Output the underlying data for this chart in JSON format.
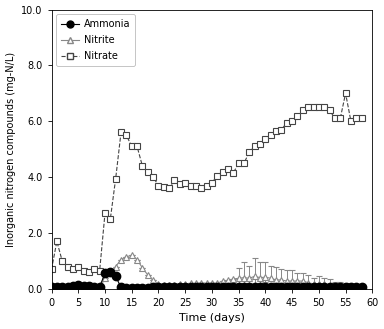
{
  "ammonia": {
    "x": [
      0,
      1,
      2,
      3,
      4,
      5,
      6,
      7,
      8,
      9,
      10,
      11,
      12,
      13,
      14,
      15,
      16,
      17,
      18,
      19,
      20,
      21,
      22,
      23,
      24,
      25,
      26,
      27,
      28,
      29,
      30,
      31,
      32,
      33,
      34,
      35,
      36,
      37,
      38,
      39,
      40,
      41,
      42,
      43,
      44,
      45,
      46,
      47,
      48,
      49,
      50,
      51,
      52,
      53,
      54,
      55,
      56,
      57,
      58
    ],
    "y": [
      0.05,
      0.05,
      0.08,
      0.08,
      0.1,
      0.15,
      0.12,
      0.1,
      0.08,
      0.08,
      0.55,
      0.6,
      0.45,
      0.05,
      0.02,
      0.02,
      0.02,
      0.02,
      0.02,
      0.05,
      0.08,
      0.08,
      0.08,
      0.08,
      0.08,
      0.05,
      0.05,
      0.05,
      0.05,
      0.05,
      0.05,
      0.05,
      0.05,
      0.05,
      0.05,
      0.05,
      0.05,
      0.05,
      0.05,
      0.05,
      0.05,
      0.05,
      0.05,
      0.05,
      0.05,
      0.05,
      0.05,
      0.05,
      0.05,
      0.05,
      0.05,
      0.05,
      0.05,
      0.05,
      0.05,
      0.05,
      0.05,
      0.05,
      0.05
    ],
    "color": "#000000",
    "marker": "o",
    "linestyle": "-",
    "label": "Ammonia",
    "markersize": 6
  },
  "nitrite": {
    "x": [
      0,
      1,
      2,
      3,
      4,
      5,
      6,
      7,
      8,
      9,
      10,
      11,
      12,
      13,
      14,
      15,
      16,
      17,
      18,
      19,
      20,
      21,
      22,
      23,
      24,
      25,
      26,
      27,
      28,
      29,
      30,
      31,
      32,
      33,
      34,
      35,
      36,
      37,
      38,
      39,
      40,
      41,
      42,
      43,
      44,
      45,
      46,
      47,
      48,
      49,
      50,
      51,
      52,
      53,
      54,
      55,
      56,
      57,
      58
    ],
    "y": [
      0.0,
      -0.05,
      -0.05,
      -0.05,
      0.0,
      0.15,
      0.05,
      0.0,
      0.0,
      0.0,
      0.4,
      0.55,
      0.8,
      1.05,
      1.15,
      1.2,
      1.05,
      0.75,
      0.5,
      0.3,
      0.18,
      0.15,
      0.15,
      0.15,
      0.18,
      0.18,
      0.2,
      0.2,
      0.22,
      0.2,
      0.22,
      0.2,
      0.28,
      0.3,
      0.35,
      0.38,
      0.4,
      0.38,
      0.45,
      0.4,
      0.42,
      0.38,
      0.32,
      0.32,
      0.28,
      0.28,
      0.28,
      0.28,
      0.22,
      0.18,
      0.18,
      0.18,
      0.12,
      0.08,
      0.08,
      0.08,
      0.05,
      0.05,
      0.05
    ],
    "yerr_upper": [
      0.0,
      0.0,
      0.0,
      0.0,
      0.0,
      0.0,
      0.0,
      0.0,
      0.0,
      0.0,
      0.0,
      0.0,
      0.0,
      0.0,
      0.0,
      0.0,
      0.0,
      0.0,
      0.0,
      0.0,
      0.0,
      0.0,
      0.0,
      0.0,
      0.0,
      0.0,
      0.0,
      0.0,
      0.0,
      0.0,
      0.0,
      0.0,
      0.0,
      0.0,
      0.0,
      0.35,
      0.55,
      0.45,
      0.65,
      0.55,
      0.55,
      0.45,
      0.45,
      0.4,
      0.4,
      0.38,
      0.3,
      0.28,
      0.28,
      0.22,
      0.28,
      0.22,
      0.22,
      0.18,
      0.18,
      0.12,
      0.12,
      0.08,
      0.08
    ],
    "yerr_lower": [
      0.0,
      0.0,
      0.0,
      0.0,
      0.0,
      0.0,
      0.0,
      0.0,
      0.0,
      0.0,
      0.0,
      0.0,
      0.0,
      0.0,
      0.0,
      0.0,
      0.0,
      0.0,
      0.0,
      0.0,
      0.0,
      0.0,
      0.0,
      0.0,
      0.0,
      0.0,
      0.0,
      0.0,
      0.0,
      0.0,
      0.0,
      0.0,
      0.0,
      0.0,
      0.0,
      0.18,
      0.28,
      0.18,
      0.28,
      0.18,
      0.18,
      0.08,
      0.12,
      0.08,
      0.08,
      0.08,
      0.05,
      0.05,
      0.05,
      0.05,
      0.05,
      0.05,
      0.05,
      0.05,
      0.05,
      0.05,
      0.0,
      0.0,
      0.0
    ],
    "color": "#888888",
    "marker": "^",
    "linestyle": "-",
    "label": "Nitrite",
    "markersize": 5
  },
  "nitrate": {
    "x": [
      0,
      1,
      2,
      3,
      4,
      5,
      6,
      7,
      8,
      9,
      10,
      11,
      12,
      13,
      14,
      15,
      16,
      17,
      18,
      19,
      20,
      21,
      22,
      23,
      24,
      25,
      26,
      27,
      28,
      29,
      30,
      31,
      32,
      33,
      34,
      35,
      36,
      37,
      38,
      39,
      40,
      41,
      42,
      43,
      44,
      45,
      46,
      47,
      48,
      49,
      50,
      51,
      52,
      53,
      54,
      55,
      56,
      57,
      58
    ],
    "y": [
      0.7,
      1.7,
      1.0,
      0.8,
      0.7,
      0.8,
      0.65,
      0.6,
      0.7,
      0.65,
      2.7,
      2.5,
      3.95,
      5.6,
      5.5,
      5.1,
      5.1,
      4.4,
      4.2,
      4.0,
      3.7,
      3.65,
      3.6,
      3.9,
      3.75,
      3.8,
      3.7,
      3.7,
      3.6,
      3.7,
      3.8,
      4.05,
      4.2,
      4.3,
      4.15,
      4.5,
      4.5,
      4.9,
      5.1,
      5.2,
      5.35,
      5.5,
      5.65,
      5.7,
      5.95,
      6.0,
      6.2,
      6.4,
      6.5,
      6.5,
      6.5,
      6.5,
      6.4,
      6.1,
      6.1,
      7.0,
      6.0,
      6.1,
      6.1
    ],
    "color": "#444444",
    "marker": "s",
    "linestyle": "--",
    "label": "Nitrate",
    "markersize": 5
  },
  "xlim": [
    0,
    60
  ],
  "ylim": [
    0.0,
    10.0
  ],
  "xticks": [
    0,
    5,
    10,
    15,
    20,
    25,
    30,
    35,
    40,
    45,
    50,
    55,
    60
  ],
  "ytick_labels": [
    "0.0",
    "2.0",
    "4.0",
    "6.0",
    "8.0",
    "10.0"
  ],
  "yticks": [
    0.0,
    2.0,
    4.0,
    6.0,
    8.0,
    10.0
  ],
  "xlabel": "Time (days)",
  "ylabel": "Inorganic nitrogen compounds (mg-N/L)",
  "background_color": "#ffffff",
  "legend_order": [
    "Ammonia",
    "Nitrite",
    "Nitrate"
  ],
  "figsize": [
    3.84,
    3.29
  ],
  "dpi": 100
}
